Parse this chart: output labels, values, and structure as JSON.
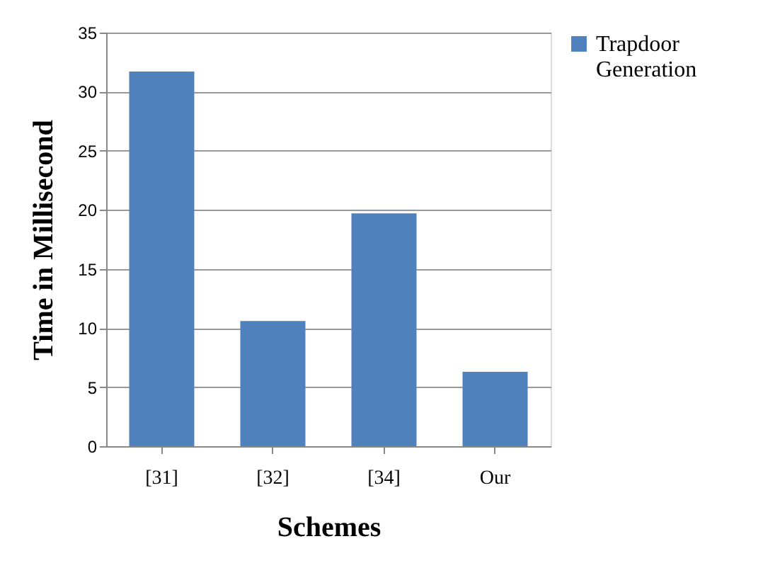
{
  "chart_data": {
    "type": "bar",
    "xlabel": "Schemes",
    "ylabel": "Time in Millisecond",
    "categories": [
      "[31]",
      "[32]",
      "[34]",
      "Our"
    ],
    "series": [
      {
        "name": "Trapdoor Generation",
        "color": "#4f81bd",
        "values": [
          31.7,
          10.6,
          19.7,
          6.3
        ]
      }
    ],
    "ylim": [
      0,
      35
    ],
    "yticks": [
      0,
      5,
      10,
      15,
      20,
      25,
      30,
      35
    ],
    "grid": "y",
    "legend": "right"
  }
}
